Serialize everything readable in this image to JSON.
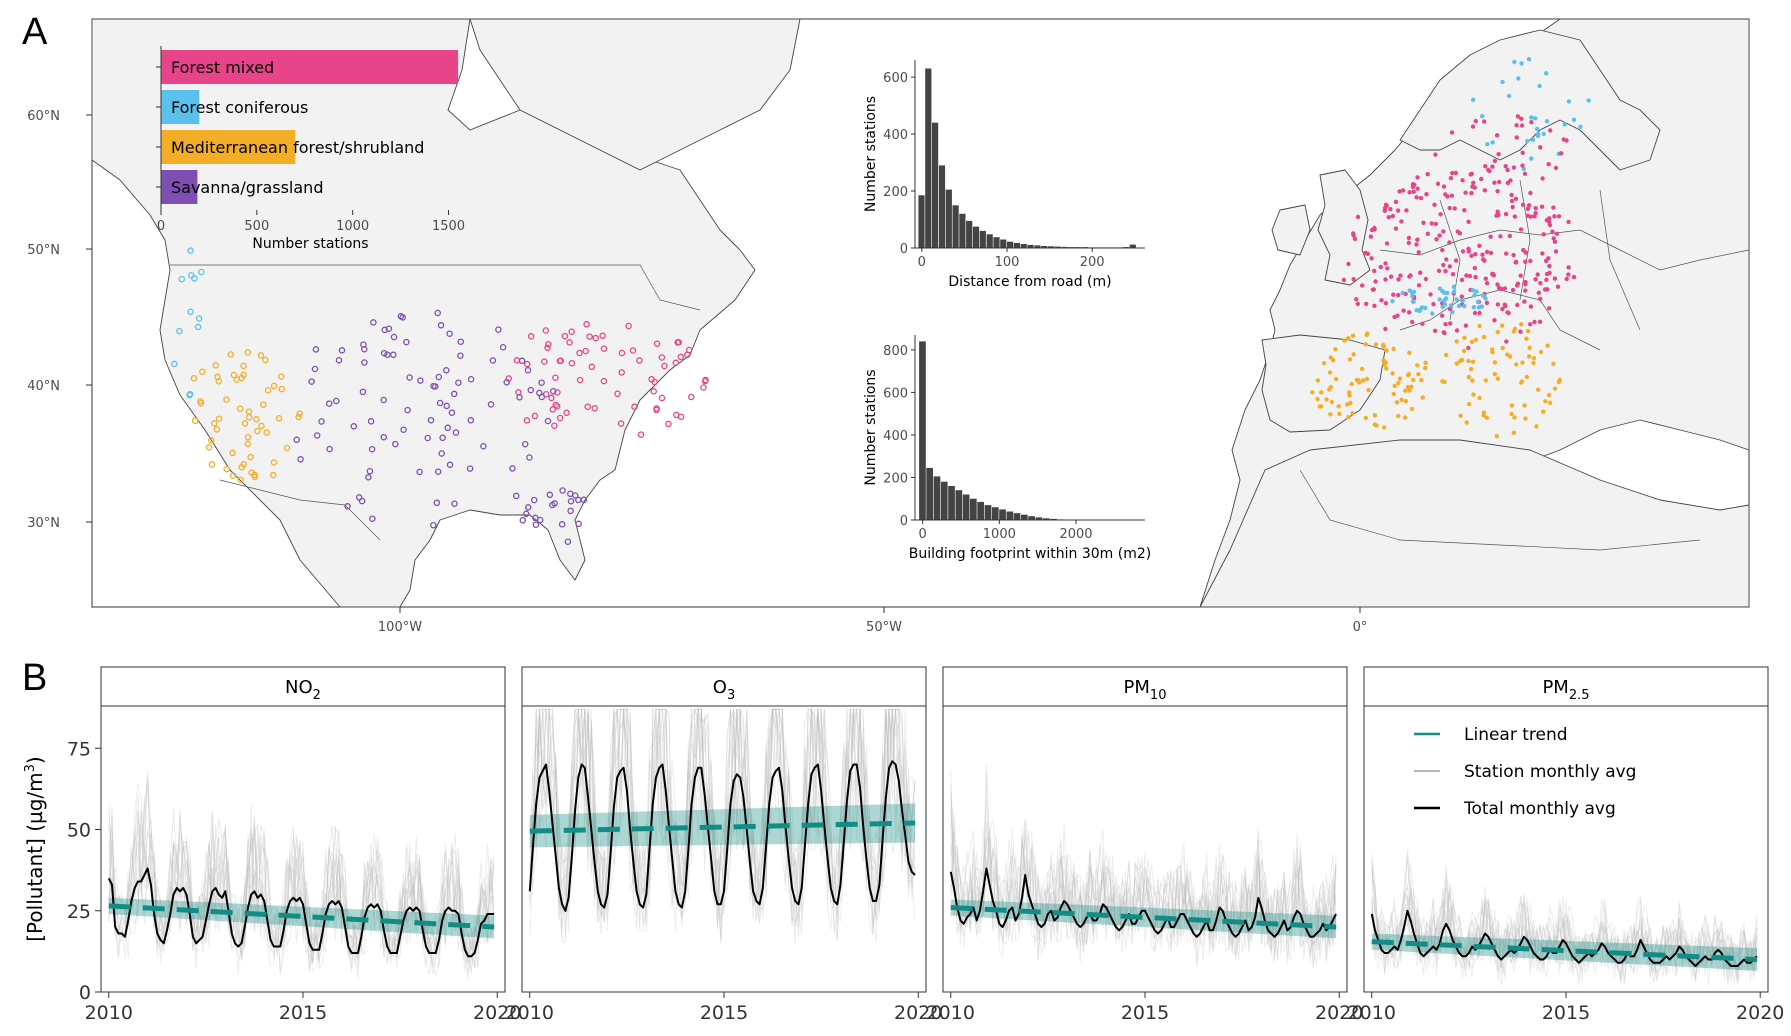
{
  "panel_labels": {
    "a": "A",
    "b": "B"
  },
  "colors": {
    "forest_mixed": "#e8448a",
    "forest_coniferous": "#5bc0eb",
    "mediterranean": "#f4ad26",
    "savanna": "#7e4eb3",
    "trend": "#128c85",
    "total": "#000000",
    "station": "#b8b8b8",
    "land": "#f2f2f2",
    "hist": "#444444"
  },
  "map": {
    "lat_ticks": [
      "60°N",
      "50°N",
      "40°N",
      "30°N"
    ],
    "lon_ticks": [
      "100°W",
      "50°W",
      "0°"
    ]
  },
  "chart_data": [
    {
      "type": "bar",
      "orientation": "horizontal",
      "title": "",
      "categories": [
        "Forest mixed",
        "Forest coniferous",
        "Mediterranean forest/shrubland",
        "Savanna/grassland"
      ],
      "category_labels": [
        "Forest mixed",
        "Forest coniferous",
        "Mediterranean forest/shrubland",
        "Savanna/grassland"
      ],
      "values": [
        1550,
        200,
        700,
        190
      ],
      "xlabel": "Number stations",
      "xticks": [
        "0",
        "500",
        "1000",
        "1500"
      ],
      "xlim": [
        0,
        1560
      ]
    },
    {
      "type": "bar",
      "subtype": "histogram",
      "xlabel": "Distance from road (m)",
      "ylabel": "Number stations",
      "xticks": [
        "0",
        "100",
        "200"
      ],
      "yticks": [
        "0",
        "200",
        "400",
        "600"
      ],
      "xlim": [
        -8,
        262
      ],
      "ylim": [
        0,
        660
      ],
      "bin_width": 8,
      "bins_start": -4,
      "values": [
        185,
        630,
        440,
        290,
        205,
        150,
        120,
        95,
        75,
        60,
        48,
        38,
        30,
        22,
        18,
        14,
        11,
        9,
        7,
        6,
        5,
        4,
        3,
        3,
        3,
        2,
        2,
        2,
        2,
        2,
        3,
        12
      ]
    },
    {
      "type": "bar",
      "subtype": "histogram",
      "xlabel": "Building footprint within 30m (m2)",
      "ylabel": "Number stations",
      "xticks": [
        "0",
        "1000",
        "2000"
      ],
      "yticks": [
        "0",
        "200",
        "400",
        "600",
        "800"
      ],
      "xlim": [
        -100,
        2900
      ],
      "ylim": [
        0,
        870
      ],
      "bin_width": 95,
      "bins_start": -47,
      "values": [
        840,
        245,
        205,
        180,
        160,
        140,
        120,
        100,
        85,
        70,
        60,
        50,
        40,
        32,
        25,
        18,
        12,
        8,
        5,
        3,
        2,
        2,
        1,
        1,
        1,
        1,
        1,
        1,
        1
      ]
    },
    {
      "type": "line",
      "facets": [
        {
          "strip": "NO",
          "strip_sub": "2",
          "x_start": 2010,
          "series": [
            {
              "name": "Total monthly avg",
              "values": [
                35,
                33,
                20,
                18,
                18,
                17,
                22,
                28,
                32,
                34,
                34,
                36,
                38,
                33,
                24,
                18,
                16,
                15,
                19,
                24,
                30,
                32,
                31,
                32,
                30,
                24,
                17,
                15,
                16,
                17,
                22,
                27,
                31,
                32,
                30,
                29,
                31,
                25,
                18,
                15,
                14,
                15,
                20,
                26,
                30,
                31,
                29,
                30,
                28,
                22,
                16,
                14,
                14,
                14,
                19,
                25,
                28,
                29,
                28,
                29,
                27,
                21,
                15,
                13,
                13,
                13,
                18,
                24,
                27,
                28,
                27,
                28,
                26,
                20,
                14,
                12,
                12,
                12,
                17,
                23,
                26,
                27,
                26,
                27,
                25,
                19,
                14,
                12,
                12,
                12,
                17,
                22,
                25,
                26,
                25,
                26,
                25,
                19,
                14,
                12,
                12,
                12,
                16,
                22,
                25,
                26,
                25,
                25,
                24,
                18,
                13,
                11,
                11,
                12,
                16,
                21,
                22,
                24,
                24,
                24
              ]
            },
            {
              "name": "Linear trend",
              "start": 26.5,
              "end": 20
            }
          ]
        },
        {
          "strip": "O",
          "strip_sub": "3",
          "x_start": 2010,
          "series": [
            {
              "name": "Total monthly avg",
              "values": [
                31,
                45,
                58,
                66,
                68,
                70,
                62,
                52,
                42,
                32,
                27,
                25,
                29,
                42,
                56,
                66,
                70,
                69,
                60,
                50,
                40,
                31,
                27,
                26,
                30,
                43,
                57,
                66,
                68,
                69,
                62,
                50,
                40,
                31,
                27,
                26,
                30,
                44,
                58,
                66,
                69,
                70,
                62,
                51,
                41,
                31,
                27,
                26,
                31,
                44,
                58,
                66,
                69,
                69,
                61,
                51,
                41,
                31,
                27,
                27,
                31,
                44,
                58,
                65,
                67,
                66,
                60,
                50,
                40,
                31,
                28,
                27,
                32,
                45,
                58,
                66,
                68,
                69,
                62,
                51,
                41,
                32,
                28,
                27,
                32,
                45,
                58,
                67,
                69,
                70,
                62,
                51,
                41,
                32,
                28,
                27,
                33,
                46,
                59,
                68,
                70,
                70,
                63,
                51,
                41,
                32,
                28,
                28,
                33,
                47,
                60,
                69,
                71,
                70,
                65,
                56,
                48,
                40,
                37,
                36
              ]
            },
            {
              "name": "Linear trend",
              "start": 49.5,
              "end": 52
            }
          ]
        },
        {
          "strip": "PM",
          "strip_sub": "10",
          "x_start": 2010,
          "series": [
            {
              "name": "Total monthly avg",
              "values": [
                37,
                32,
                26,
                22,
                21,
                23,
                24,
                26,
                22,
                25,
                31,
                38,
                33,
                28,
                25,
                21,
                20,
                22,
                25,
                26,
                22,
                24,
                29,
                36,
                30,
                27,
                24,
                21,
                20,
                21,
                24,
                25,
                22,
                23,
                26,
                28,
                27,
                25,
                23,
                21,
                20,
                21,
                23,
                24,
                22,
                22,
                24,
                27,
                26,
                24,
                22,
                20,
                19,
                20,
                22,
                24,
                21,
                21,
                23,
                25,
                25,
                23,
                21,
                19,
                18,
                19,
                21,
                23,
                20,
                20,
                22,
                24,
                24,
                22,
                20,
                18,
                17,
                18,
                20,
                22,
                19,
                19,
                22,
                26,
                25,
                22,
                20,
                18,
                17,
                18,
                20,
                22,
                19,
                20,
                23,
                29,
                26,
                22,
                19,
                18,
                17,
                18,
                20,
                22,
                19,
                20,
                23,
                25,
                24,
                21,
                19,
                17,
                17,
                18,
                19,
                21,
                19,
                20,
                22,
                24
              ]
            },
            {
              "name": "Linear trend",
              "start": 26,
              "end": 20
            }
          ]
        },
        {
          "strip": "PM",
          "strip_sub": "2.5",
          "x_start": 2010,
          "series": [
            {
              "name": "Total monthly avg",
              "values": [
                24,
                19,
                16,
                13,
                12,
                12,
                13,
                14,
                13,
                16,
                20,
                25,
                22,
                18,
                15,
                12,
                11,
                12,
                13,
                14,
                13,
                15,
                19,
                21,
                19,
                16,
                14,
                12,
                11,
                11,
                12,
                14,
                13,
                14,
                16,
                18,
                17,
                15,
                13,
                11,
                10,
                11,
                12,
                13,
                12,
                13,
                15,
                17,
                16,
                14,
                12,
                11,
                10,
                10,
                11,
                13,
                12,
                12,
                14,
                16,
                15,
                13,
                11,
                10,
                9,
                10,
                11,
                12,
                11,
                12,
                13,
                15,
                14,
                12,
                11,
                10,
                9,
                9,
                10,
                12,
                11,
                11,
                13,
                16,
                14,
                12,
                10,
                9,
                9,
                9,
                10,
                11,
                10,
                11,
                12,
                14,
                13,
                11,
                10,
                9,
                8,
                9,
                10,
                11,
                10,
                10,
                12,
                13,
                12,
                10,
                9,
                8,
                8,
                8,
                9,
                10,
                9,
                9,
                10,
                11
              ]
            },
            {
              "name": "Linear trend",
              "start": 15.5,
              "end": 10
            }
          ]
        }
      ],
      "ylabel": "[Pollutant] (µg/m",
      "ylabel_sup": "3",
      "ylabel_end": ")",
      "yticks": [
        "0",
        "25",
        "50",
        "75"
      ],
      "xticks": [
        "2010",
        "2015",
        "2020"
      ],
      "ylim": [
        0,
        88
      ],
      "xlim": [
        2009.8,
        2020.2
      ],
      "legend": [
        "Linear trend",
        "Station monthly avg",
        "Total monthly avg"
      ],
      "legend_position": "inside top-right of last facet"
    }
  ]
}
